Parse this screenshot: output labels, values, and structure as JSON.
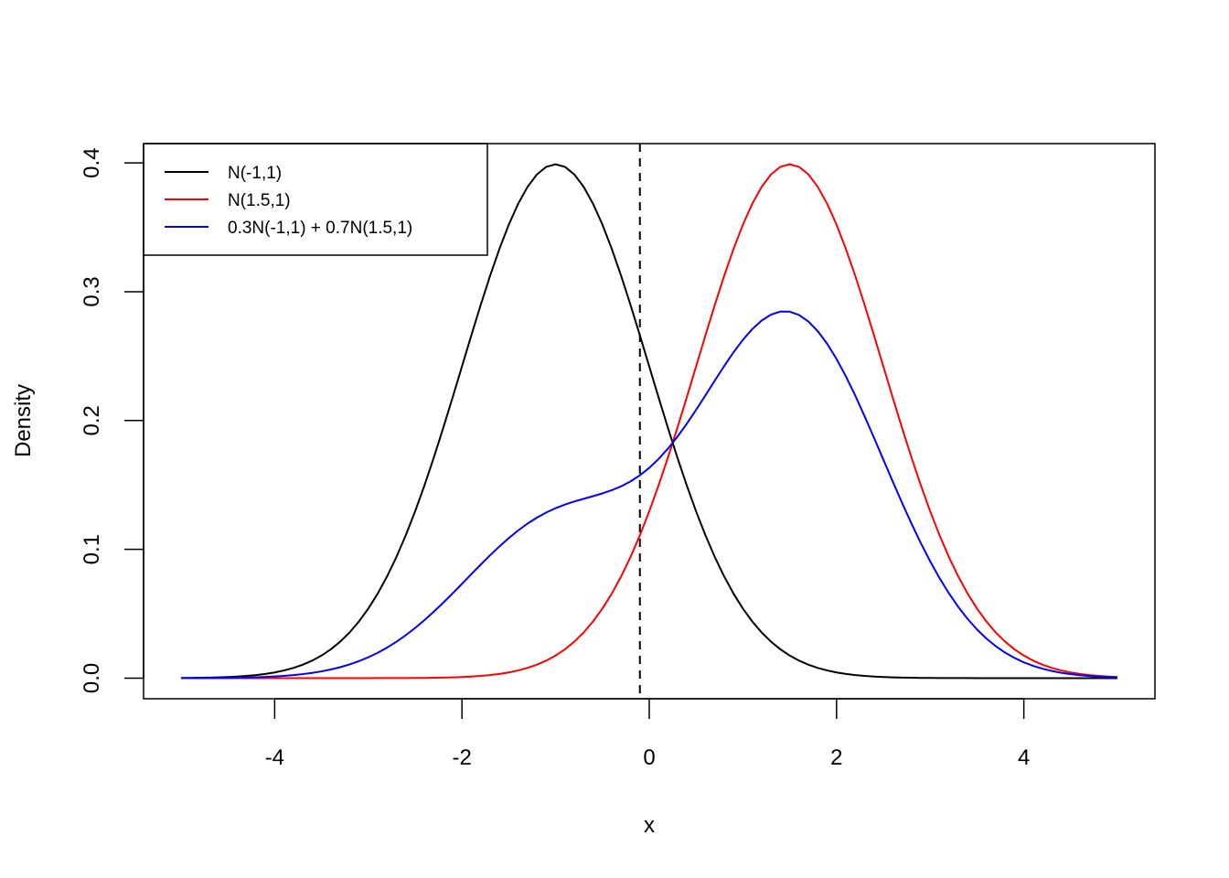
{
  "chart_data": {
    "type": "line",
    "title": "",
    "xlabel": "x",
    "ylabel": "Density",
    "xlim": [
      -5.4,
      5.4
    ],
    "ylim": [
      -0.016,
      0.415
    ],
    "x_ticks": [
      -4,
      -2,
      0,
      2,
      4
    ],
    "x_tick_labels": [
      "-4",
      "-2",
      "0",
      "2",
      "4"
    ],
    "y_ticks": [
      0.0,
      0.1,
      0.2,
      0.3,
      0.4
    ],
    "y_tick_labels": [
      "0.0",
      "0.1",
      "0.2",
      "0.3",
      "0.4"
    ],
    "grid": false,
    "legend_position": "top-left",
    "x_range": [
      -5,
      5
    ],
    "series": [
      {
        "name": "N(-1,1)",
        "color": "#000000",
        "distribution": {
          "components": [
            {
              "weight": 1.0,
              "mean": -1.0,
              "sd": 1.0
            }
          ]
        }
      },
      {
        "name": "N(1.5,1)",
        "color": "#ff0000",
        "distribution": {
          "components": [
            {
              "weight": 1.0,
              "mean": 1.5,
              "sd": 1.0
            }
          ]
        }
      },
      {
        "name": "0.3N(-1,1) + 0.7N(1.5,1)",
        "color": "#0000ff",
        "distribution": {
          "components": [
            {
              "weight": 0.3,
              "mean": -1.0,
              "sd": 1.0
            },
            {
              "weight": 0.7,
              "mean": 1.5,
              "sd": 1.0
            }
          ]
        }
      }
    ],
    "vertical_line": {
      "x": -0.1,
      "style": "dashed",
      "color": "#000000"
    }
  }
}
